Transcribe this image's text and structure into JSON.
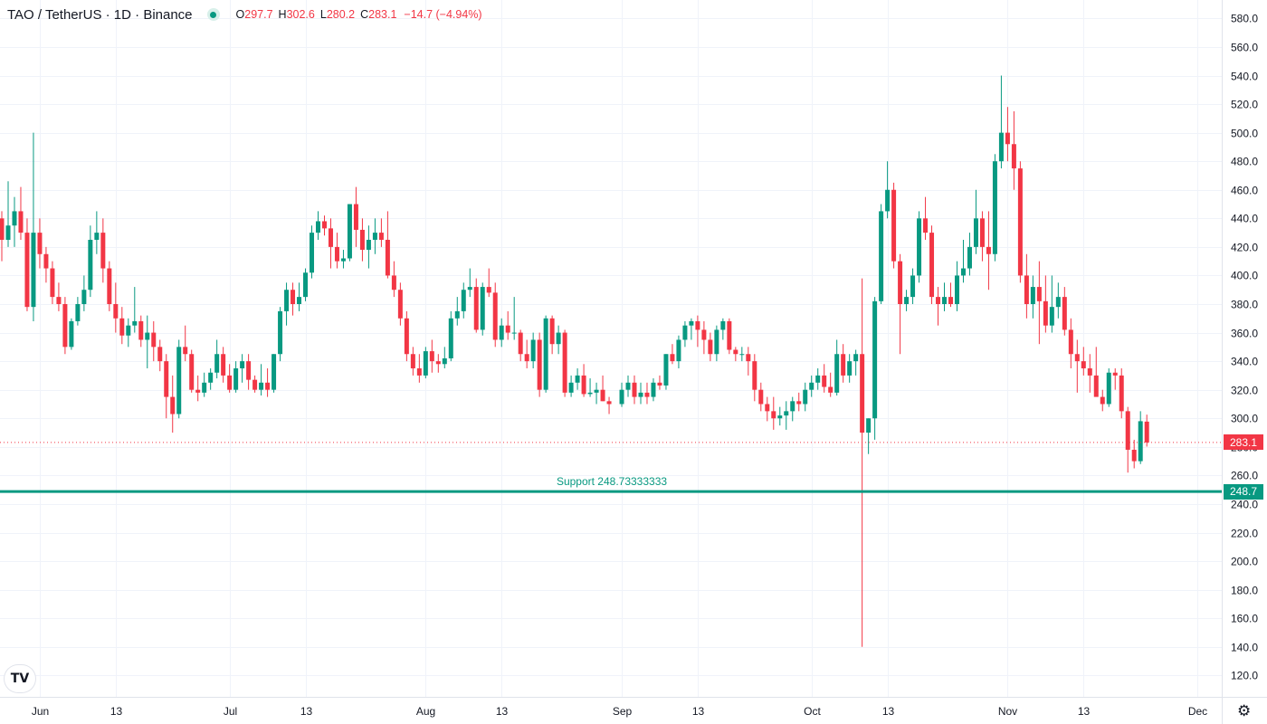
{
  "header": {
    "title": "TAO / TetherUS · 1D · Binance",
    "open_label": "O",
    "open": "297.7",
    "high_label": "H",
    "high": "302.6",
    "low_label": "L",
    "low": "280.2",
    "close_label": "C",
    "close": "283.1",
    "change": "−14.7 (−4.94%)"
  },
  "price_tag": "283.1",
  "support_tag": "248.7",
  "colors": {
    "up": "#089981",
    "down": "#f23645",
    "support": "#089981",
    "grid": "#f0f3fa"
  },
  "chart_data": {
    "type": "candlestick",
    "symbol": "TAO / TetherUS",
    "interval": "1D",
    "exchange": "Binance",
    "y_ticks": [
      "580.0",
      "560.0",
      "540.0",
      "520.0",
      "500.0",
      "480.0",
      "460.0",
      "440.0",
      "420.0",
      "400.0",
      "380.0",
      "360.0",
      "340.0",
      "320.0",
      "300.0",
      "280.0",
      "260.0",
      "240.0",
      "220.0",
      "200.0",
      "180.0",
      "160.0",
      "140.0",
      "120.0"
    ],
    "x_ticks": [
      {
        "label": "Jun",
        "date": "2025-06-01"
      },
      {
        "label": "13",
        "date": "2025-06-13"
      },
      {
        "label": "Jul",
        "date": "2025-07-01"
      },
      {
        "label": "13",
        "date": "2025-07-13"
      },
      {
        "label": "Aug",
        "date": "2025-08-01"
      },
      {
        "label": "13",
        "date": "2025-08-13"
      },
      {
        "label": "Sep",
        "date": "2025-09-01"
      },
      {
        "label": "13",
        "date": "2025-09-13"
      },
      {
        "label": "Oct",
        "date": "2025-10-01"
      },
      {
        "label": "13",
        "date": "2025-10-13"
      },
      {
        "label": "Nov",
        "date": "2025-11-01"
      },
      {
        "label": "13",
        "date": "2025-11-13"
      },
      {
        "label": "Dec",
        "date": "2025-12-01"
      }
    ],
    "ylim": [
      110,
      590
    ],
    "xlim": [
      "2025-05-26",
      "2025-12-05"
    ],
    "support": {
      "label": "Support 248.73333333",
      "value": 248.7333
    },
    "last_close": 283.1,
    "candles": [
      [
        "2025-05-26",
        440,
        445,
        410,
        425
      ],
      [
        "2025-05-27",
        425,
        466,
        420,
        435
      ],
      [
        "2025-05-28",
        435,
        455,
        420,
        445
      ],
      [
        "2025-05-29",
        445,
        462,
        425,
        430
      ],
      [
        "2025-05-30",
        430,
        440,
        375,
        378
      ],
      [
        "2025-05-31",
        378,
        500,
        368,
        430
      ],
      [
        "2025-06-01",
        430,
        440,
        405,
        415
      ],
      [
        "2025-06-02",
        415,
        420,
        395,
        405
      ],
      [
        "2025-06-03",
        405,
        410,
        380,
        385
      ],
      [
        "2025-06-04",
        385,
        395,
        375,
        380
      ],
      [
        "2025-06-05",
        380,
        385,
        345,
        350
      ],
      [
        "2025-06-06",
        350,
        370,
        348,
        368
      ],
      [
        "2025-06-07",
        368,
        385,
        365,
        380
      ],
      [
        "2025-06-08",
        380,
        400,
        375,
        390
      ],
      [
        "2025-06-09",
        390,
        435,
        385,
        425
      ],
      [
        "2025-06-10",
        425,
        445,
        415,
        430
      ],
      [
        "2025-06-11",
        430,
        440,
        395,
        405
      ],
      [
        "2025-06-12",
        405,
        410,
        375,
        380
      ],
      [
        "2025-06-13",
        380,
        395,
        360,
        370
      ],
      [
        "2025-06-14",
        370,
        378,
        352,
        358
      ],
      [
        "2025-06-15",
        358,
        370,
        350,
        365
      ],
      [
        "2025-06-16",
        365,
        392,
        360,
        368
      ],
      [
        "2025-06-17",
        368,
        372,
        350,
        355
      ],
      [
        "2025-06-18",
        355,
        372,
        335,
        360
      ],
      [
        "2025-06-19",
        360,
        368,
        340,
        350
      ],
      [
        "2025-06-20",
        350,
        355,
        333,
        340
      ],
      [
        "2025-06-21",
        340,
        345,
        300,
        315
      ],
      [
        "2025-06-22",
        315,
        330,
        290,
        303
      ],
      [
        "2025-06-23",
        303,
        355,
        300,
        350
      ],
      [
        "2025-06-24",
        350,
        365,
        340,
        345
      ],
      [
        "2025-06-25",
        345,
        348,
        318,
        320
      ],
      [
        "2025-06-26",
        320,
        330,
        312,
        318
      ],
      [
        "2025-06-27",
        318,
        332,
        315,
        325
      ],
      [
        "2025-06-28",
        325,
        335,
        320,
        332
      ],
      [
        "2025-06-29",
        332,
        355,
        328,
        345
      ],
      [
        "2025-06-30",
        345,
        350,
        325,
        330
      ],
      [
        "2025-07-01",
        330,
        338,
        318,
        320
      ],
      [
        "2025-07-02",
        320,
        340,
        318,
        335
      ],
      [
        "2025-07-03",
        335,
        345,
        325,
        340
      ],
      [
        "2025-07-04",
        340,
        345,
        320,
        327
      ],
      [
        "2025-07-05",
        327,
        330,
        318,
        320
      ],
      [
        "2025-07-06",
        320,
        338,
        316,
        325
      ],
      [
        "2025-07-07",
        325,
        335,
        315,
        320
      ],
      [
        "2025-07-08",
        320,
        345,
        318,
        345
      ],
      [
        "2025-07-09",
        345,
        378,
        340,
        375
      ],
      [
        "2025-07-10",
        375,
        395,
        365,
        390
      ],
      [
        "2025-07-11",
        390,
        395,
        372,
        380
      ],
      [
        "2025-07-12",
        380,
        395,
        375,
        385
      ],
      [
        "2025-07-13",
        385,
        405,
        382,
        402
      ],
      [
        "2025-07-14",
        402,
        435,
        398,
        430
      ],
      [
        "2025-07-15",
        430,
        445,
        425,
        438
      ],
      [
        "2025-07-16",
        438,
        442,
        428,
        433
      ],
      [
        "2025-07-17",
        433,
        440,
        405,
        420
      ],
      [
        "2025-07-18",
        420,
        430,
        405,
        410
      ],
      [
        "2025-07-19",
        410,
        418,
        405,
        412
      ],
      [
        "2025-07-20",
        412,
        450,
        410,
        450
      ],
      [
        "2025-07-21",
        450,
        462,
        420,
        432
      ],
      [
        "2025-07-22",
        432,
        440,
        410,
        418
      ],
      [
        "2025-07-23",
        418,
        435,
        405,
        425
      ],
      [
        "2025-07-24",
        425,
        440,
        415,
        430
      ],
      [
        "2025-07-25",
        430,
        440,
        420,
        425
      ],
      [
        "2025-07-26",
        425,
        445,
        398,
        400
      ],
      [
        "2025-07-27",
        400,
        410,
        385,
        390
      ],
      [
        "2025-07-28",
        390,
        395,
        365,
        370
      ],
      [
        "2025-07-29",
        370,
        375,
        340,
        345
      ],
      [
        "2025-07-30",
        345,
        350,
        330,
        335
      ],
      [
        "2025-07-31",
        335,
        345,
        325,
        330
      ],
      [
        "2025-08-01",
        330,
        350,
        328,
        347
      ],
      [
        "2025-08-02",
        347,
        355,
        332,
        340
      ],
      [
        "2025-08-03",
        340,
        345,
        332,
        338
      ],
      [
        "2025-08-04",
        338,
        350,
        335,
        342
      ],
      [
        "2025-08-05",
        342,
        375,
        340,
        370
      ],
      [
        "2025-08-06",
        370,
        385,
        365,
        375
      ],
      [
        "2025-08-07",
        375,
        395,
        370,
        390
      ],
      [
        "2025-08-08",
        390,
        405,
        385,
        392
      ],
      [
        "2025-08-09",
        392,
        398,
        360,
        362
      ],
      [
        "2025-08-10",
        362,
        395,
        358,
        392
      ],
      [
        "2025-08-11",
        392,
        405,
        385,
        388
      ],
      [
        "2025-08-12",
        388,
        395,
        350,
        355
      ],
      [
        "2025-08-13",
        355,
        370,
        350,
        365
      ],
      [
        "2025-08-14",
        365,
        375,
        355,
        360
      ],
      [
        "2025-08-15",
        360,
        385,
        355,
        360
      ],
      [
        "2025-08-16",
        360,
        362,
        340,
        345
      ],
      [
        "2025-08-17",
        345,
        355,
        335,
        340
      ],
      [
        "2025-08-18",
        340,
        360,
        335,
        355
      ],
      [
        "2025-08-19",
        355,
        360,
        315,
        320
      ],
      [
        "2025-08-20",
        320,
        372,
        318,
        370
      ],
      [
        "2025-08-21",
        370,
        372,
        345,
        352
      ],
      [
        "2025-08-22",
        352,
        365,
        345,
        360
      ],
      [
        "2025-08-23",
        360,
        362,
        315,
        318
      ],
      [
        "2025-08-24",
        318,
        330,
        315,
        325
      ],
      [
        "2025-08-25",
        325,
        335,
        320,
        330
      ],
      [
        "2025-08-26",
        330,
        338,
        315,
        317
      ],
      [
        "2025-08-27",
        317,
        328,
        315,
        318
      ],
      [
        "2025-08-28",
        318,
        325,
        310,
        320
      ],
      [
        "2025-08-29",
        320,
        330,
        312,
        312
      ],
      [
        "2025-08-30",
        312,
        315,
        303,
        310
      ],
      [
        "2025-09-01",
        310,
        325,
        308,
        320
      ],
      [
        "2025-09-02",
        320,
        330,
        315,
        325
      ],
      [
        "2025-09-03",
        325,
        330,
        310,
        315
      ],
      [
        "2025-09-04",
        315,
        325,
        310,
        318
      ],
      [
        "2025-09-05",
        318,
        325,
        310,
        315
      ],
      [
        "2025-09-06",
        315,
        328,
        312,
        325
      ],
      [
        "2025-09-07",
        325,
        330,
        320,
        323
      ],
      [
        "2025-09-08",
        323,
        345,
        320,
        345
      ],
      [
        "2025-09-09",
        345,
        352,
        338,
        340
      ],
      [
        "2025-09-10",
        340,
        358,
        335,
        355
      ],
      [
        "2025-09-11",
        355,
        368,
        350,
        365
      ],
      [
        "2025-09-12",
        365,
        370,
        355,
        368
      ],
      [
        "2025-09-13",
        368,
        372,
        350,
        362
      ],
      [
        "2025-09-14",
        362,
        368,
        345,
        355
      ],
      [
        "2025-09-15",
        355,
        360,
        340,
        345
      ],
      [
        "2025-09-16",
        345,
        365,
        340,
        362
      ],
      [
        "2025-09-17",
        362,
        370,
        355,
        368
      ],
      [
        "2025-09-18",
        368,
        370,
        345,
        348
      ],
      [
        "2025-09-19",
        348,
        350,
        340,
        345
      ],
      [
        "2025-09-20",
        345,
        350,
        340,
        345
      ],
      [
        "2025-09-21",
        345,
        350,
        330,
        340
      ],
      [
        "2025-09-22",
        340,
        345,
        312,
        320
      ],
      [
        "2025-09-23",
        320,
        325,
        305,
        310
      ],
      [
        "2025-09-24",
        310,
        315,
        298,
        305
      ],
      [
        "2025-09-25",
        305,
        315,
        292,
        300
      ],
      [
        "2025-09-26",
        300,
        308,
        295,
        302
      ],
      [
        "2025-09-27",
        302,
        312,
        292,
        305
      ],
      [
        "2025-09-28",
        305,
        315,
        298,
        312
      ],
      [
        "2025-09-29",
        312,
        318,
        305,
        310
      ],
      [
        "2025-09-30",
        310,
        325,
        305,
        320
      ],
      [
        "2025-10-01",
        320,
        330,
        315,
        325
      ],
      [
        "2025-10-02",
        325,
        335,
        320,
        330
      ],
      [
        "2025-10-03",
        330,
        338,
        318,
        322
      ],
      [
        "2025-10-04",
        322,
        332,
        315,
        318
      ],
      [
        "2025-10-05",
        318,
        355,
        316,
        345
      ],
      [
        "2025-10-06",
        345,
        352,
        325,
        330
      ],
      [
        "2025-10-07",
        330,
        345,
        325,
        340
      ],
      [
        "2025-10-08",
        340,
        348,
        330,
        345
      ],
      [
        "2025-10-09",
        345,
        398,
        140,
        290
      ],
      [
        "2025-10-10",
        290,
        300,
        275,
        300
      ],
      [
        "2025-10-11",
        300,
        385,
        285,
        382
      ],
      [
        "2025-10-12",
        382,
        450,
        380,
        445
      ],
      [
        "2025-10-13",
        445,
        480,
        440,
        460
      ],
      [
        "2025-10-14",
        460,
        465,
        405,
        410
      ],
      [
        "2025-10-15",
        410,
        415,
        345,
        380
      ],
      [
        "2025-10-16",
        380,
        390,
        375,
        385
      ],
      [
        "2025-10-17",
        385,
        405,
        380,
        400
      ],
      [
        "2025-10-18",
        400,
        445,
        395,
        440
      ],
      [
        "2025-10-19",
        440,
        455,
        425,
        430
      ],
      [
        "2025-10-20",
        430,
        435,
        380,
        385
      ],
      [
        "2025-10-21",
        385,
        392,
        365,
        380
      ],
      [
        "2025-10-22",
        380,
        395,
        375,
        385
      ],
      [
        "2025-10-23",
        385,
        395,
        378,
        380
      ],
      [
        "2025-10-24",
        380,
        410,
        375,
        400
      ],
      [
        "2025-10-25",
        400,
        425,
        395,
        405
      ],
      [
        "2025-10-26",
        405,
        430,
        400,
        420
      ],
      [
        "2025-10-27",
        420,
        460,
        415,
        440
      ],
      [
        "2025-10-28",
        440,
        445,
        410,
        420
      ],
      [
        "2025-10-29",
        420,
        445,
        390,
        415
      ],
      [
        "2025-10-30",
        415,
        485,
        410,
        480
      ],
      [
        "2025-10-31",
        480,
        540,
        475,
        500
      ],
      [
        "2025-11-01",
        500,
        518,
        480,
        492
      ],
      [
        "2025-11-02",
        492,
        515,
        460,
        475
      ],
      [
        "2025-11-03",
        475,
        480,
        395,
        400
      ],
      [
        "2025-11-04",
        400,
        415,
        370,
        380
      ],
      [
        "2025-11-05",
        380,
        400,
        370,
        392
      ],
      [
        "2025-11-06",
        392,
        410,
        352,
        382
      ],
      [
        "2025-11-07",
        382,
        400,
        360,
        365
      ],
      [
        "2025-11-08",
        365,
        400,
        360,
        378
      ],
      [
        "2025-11-09",
        378,
        395,
        370,
        385
      ],
      [
        "2025-11-10",
        385,
        392,
        358,
        362
      ],
      [
        "2025-11-11",
        362,
        370,
        335,
        345
      ],
      [
        "2025-11-12",
        345,
        355,
        318,
        340
      ],
      [
        "2025-11-13",
        340,
        350,
        330,
        335
      ],
      [
        "2025-11-14",
        335,
        345,
        318,
        330
      ],
      [
        "2025-11-15",
        330,
        350,
        318,
        315
      ],
      [
        "2025-11-16",
        315,
        320,
        305,
        310
      ],
      [
        "2025-11-17",
        310,
        335,
        308,
        332
      ],
      [
        "2025-11-18",
        332,
        335,
        320,
        330
      ],
      [
        "2025-11-19",
        330,
        335,
        300,
        305
      ],
      [
        "2025-11-20",
        305,
        308,
        262,
        278
      ],
      [
        "2025-11-21",
        278,
        285,
        265,
        270
      ],
      [
        "2025-11-22",
        270,
        305,
        268,
        298
      ],
      [
        "2025-11-23",
        297.7,
        302.6,
        280.2,
        283.1
      ]
    ]
  }
}
